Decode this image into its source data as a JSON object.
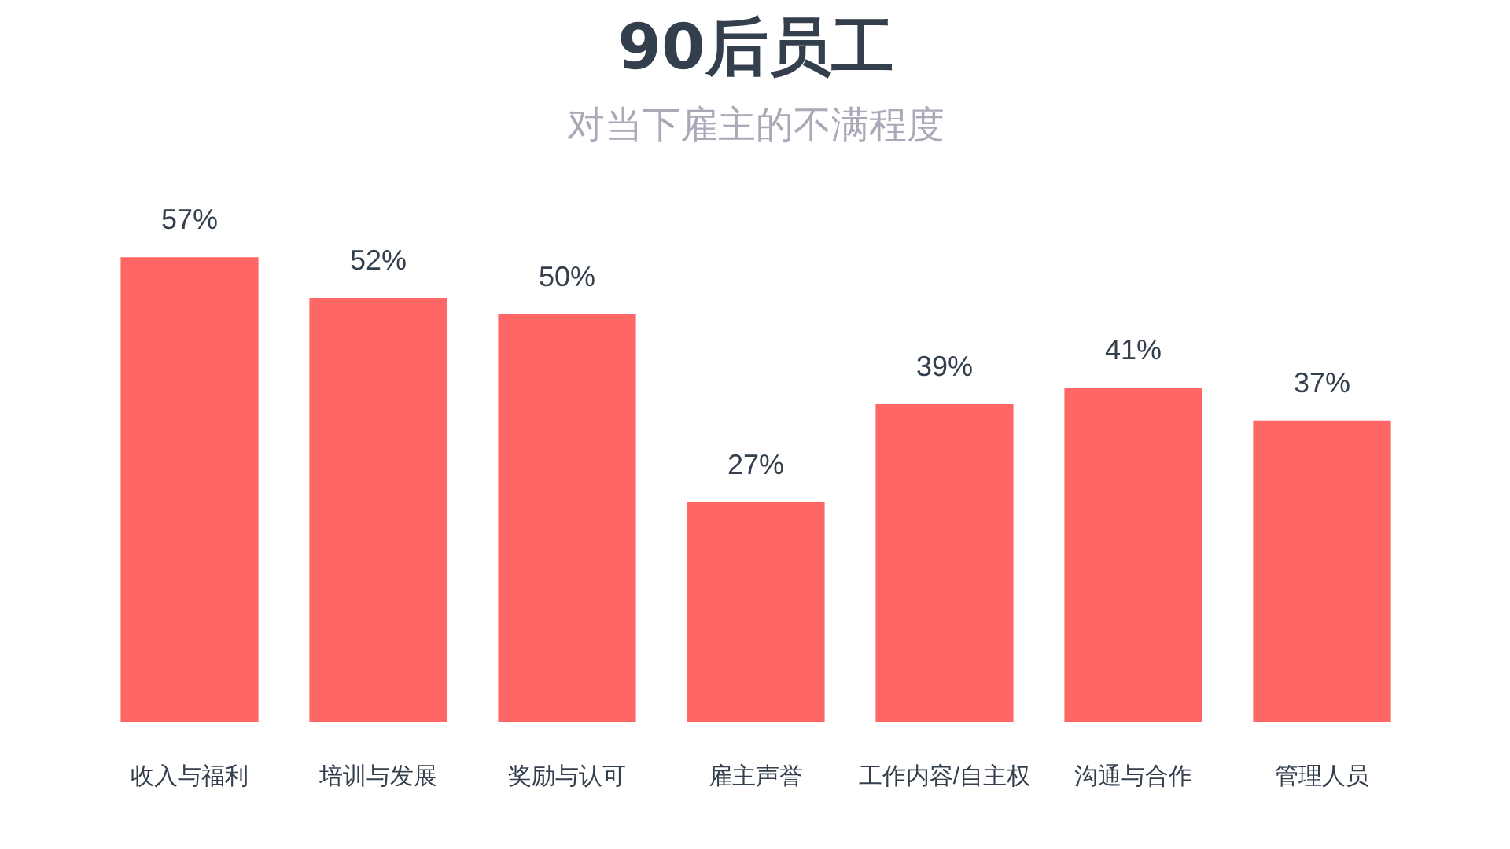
{
  "chart_data": {
    "type": "bar",
    "title": "90后员工",
    "subtitle": "对当下雇主的不满程度",
    "categories": [
      "收入与福利",
      "培训与发展",
      "奖励与认可",
      "雇主声誉",
      "工作内容/自主权",
      "沟通与合作",
      "管理人员"
    ],
    "values": [
      57,
      52,
      50,
      27,
      39,
      41,
      37
    ],
    "value_labels": [
      "57%",
      "52%",
      "50%",
      "27%",
      "39%",
      "41%",
      "37%"
    ],
    "color": "#ff6666"
  }
}
